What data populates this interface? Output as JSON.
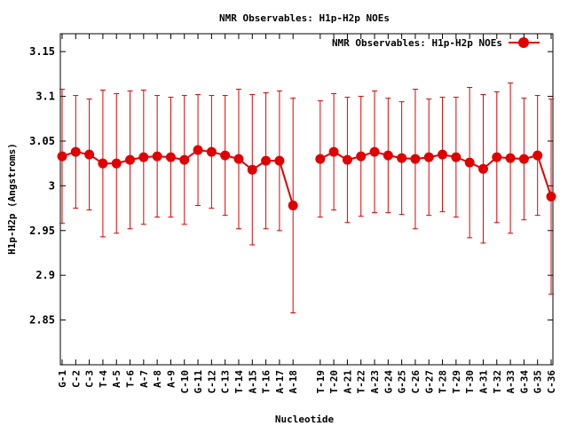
{
  "chart_data": {
    "type": "line",
    "title": "NMR Observables: H1p-H2p NOEs",
    "xlabel": "Nucleotide",
    "ylabel": "H1p-H2p (Angstroms)",
    "ylim": [
      2.8,
      3.17
    ],
    "yticks": [
      2.85,
      2.9,
      2.95,
      3,
      3.05,
      3.1,
      3.15
    ],
    "ytick_labels": [
      "2.85",
      "2.9",
      "2.95",
      "3",
      "3.05",
      "3.1",
      "3.15"
    ],
    "grid": false,
    "legend": "top-right",
    "categories": [
      "G-1",
      "C-2",
      "C-3",
      "T-4",
      "A-5",
      "T-6",
      "A-7",
      "A-8",
      "A-9",
      "C-10",
      "G-11",
      "C-12",
      "C-13",
      "T-14",
      "A-15",
      "T-16",
      "A-17",
      "A-18",
      "",
      "T-19",
      "T-20",
      "A-21",
      "T-22",
      "A-23",
      "G-24",
      "G-25",
      "C-26",
      "G-27",
      "T-28",
      "T-29",
      "T-30",
      "A-31",
      "T-32",
      "A-33",
      "G-34",
      "G-35",
      "C-36"
    ],
    "series": [
      {
        "name": "NMR Observables: H1p-H2p NOEs",
        "color": "#e00000",
        "values": [
          3.033,
          3.038,
          3.035,
          3.025,
          3.025,
          3.029,
          3.032,
          3.033,
          3.032,
          3.029,
          3.04,
          3.038,
          3.034,
          3.03,
          3.018,
          3.028,
          3.028,
          2.978,
          null,
          3.03,
          3.038,
          3.029,
          3.033,
          3.038,
          3.034,
          3.031,
          3.03,
          3.032,
          3.035,
          3.032,
          3.026,
          3.019,
          3.032,
          3.031,
          3.03,
          3.034,
          2.988
        ],
        "errors": [
          0.075,
          0.063,
          0.062,
          0.082,
          0.078,
          0.077,
          0.075,
          0.068,
          0.067,
          0.072,
          0.062,
          0.063,
          0.067,
          0.078,
          0.084,
          0.076,
          0.078,
          0.12,
          null,
          0.065,
          0.065,
          0.07,
          0.067,
          0.068,
          0.064,
          0.063,
          0.078,
          0.065,
          0.064,
          0.067,
          0.084,
          0.083,
          0.073,
          0.084,
          0.068,
          0.067,
          0.109
        ]
      }
    ]
  }
}
